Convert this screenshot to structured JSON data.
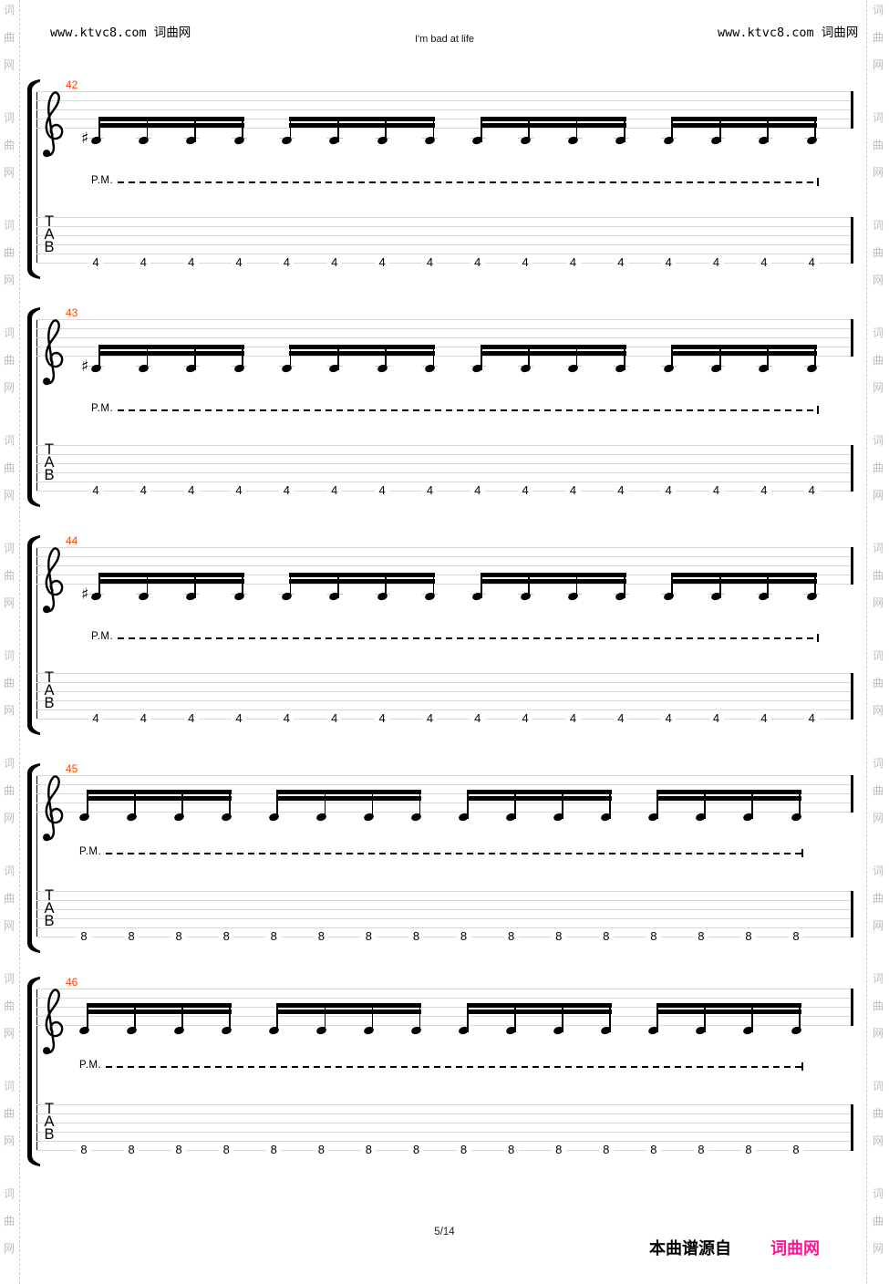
{
  "page": {
    "header": {
      "left_site": "www.ktvc8.com 词曲网",
      "title": "I'm bad at life",
      "right_site": "www.ktvc8.com 词曲网"
    },
    "footer": {
      "page_indicator": "5/14",
      "source_text": "本曲谱源自",
      "source_brand": "词曲网"
    },
    "side_decoration": {
      "chars": [
        "词",
        "曲",
        "网"
      ]
    },
    "colors": {
      "measure_number": "#ff4500",
      "staff_line": "#d9d9d9",
      "brand_pink": "#ff1493",
      "side_text": "#bcbcbc",
      "ink": "#000000"
    }
  },
  "score": {
    "clef": "treble",
    "tab_letters": [
      "T",
      "A",
      "B"
    ],
    "palm_mute_label": "P.M.",
    "systems": [
      {
        "measure_number": "42",
        "accidental": "♯",
        "groups": 4,
        "notes_per_group": 4,
        "frets": [
          "4",
          "4",
          "4",
          "4",
          "4",
          "4",
          "4",
          "4",
          "4",
          "4",
          "4",
          "4",
          "4",
          "4",
          "4",
          "4"
        ]
      },
      {
        "measure_number": "43",
        "accidental": "♯",
        "groups": 4,
        "notes_per_group": 4,
        "frets": [
          "4",
          "4",
          "4",
          "4",
          "4",
          "4",
          "4",
          "4",
          "4",
          "4",
          "4",
          "4",
          "4",
          "4",
          "4",
          "4"
        ]
      },
      {
        "measure_number": "44",
        "accidental": "♯",
        "groups": 4,
        "notes_per_group": 4,
        "frets": [
          "4",
          "4",
          "4",
          "4",
          "4",
          "4",
          "4",
          "4",
          "4",
          "4",
          "4",
          "4",
          "4",
          "4",
          "4",
          "4"
        ]
      },
      {
        "measure_number": "45",
        "accidental": null,
        "groups": 4,
        "notes_per_group": 4,
        "frets": [
          "8",
          "8",
          "8",
          "8",
          "8",
          "8",
          "8",
          "8",
          "8",
          "8",
          "8",
          "8",
          "8",
          "8",
          "8",
          "8"
        ]
      },
      {
        "measure_number": "46",
        "accidental": null,
        "groups": 4,
        "notes_per_group": 4,
        "frets": [
          "8",
          "8",
          "8",
          "8",
          "8",
          "8",
          "8",
          "8",
          "8",
          "8",
          "8",
          "8",
          "8",
          "8",
          "8",
          "8"
        ]
      }
    ]
  }
}
